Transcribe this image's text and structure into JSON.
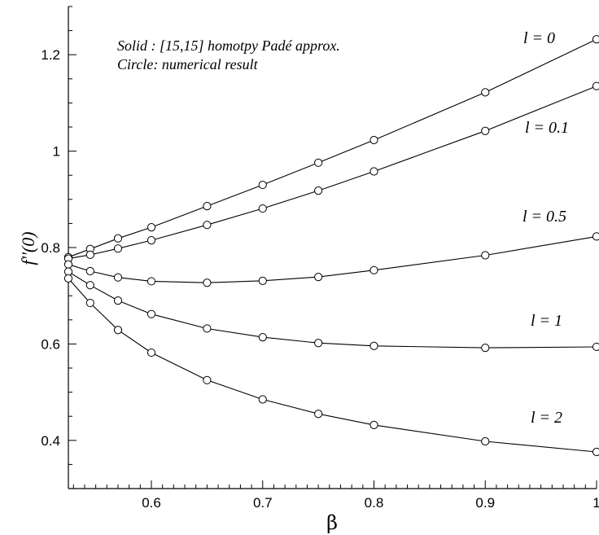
{
  "chart_data": {
    "type": "line",
    "xlabel": "β",
    "ylabel": "f''(0)",
    "xlim": [
      0.5254,
      1.0
    ],
    "ylim": [
      0.3,
      1.3
    ],
    "xticks": [
      0.6,
      0.7,
      0.8,
      0.9,
      1.0
    ],
    "xtick_labels": [
      "0.6",
      "0.7",
      "0.8",
      "0.9",
      "1"
    ],
    "yticks": [
      0.4,
      0.6,
      0.8,
      1.0,
      1.2
    ],
    "ytick_labels": [
      "0.4",
      "0.6",
      "0.8",
      "1",
      "1.2"
    ],
    "annotations": [
      "Solid : [15,15] homotpy Padé approx.",
      "Circle: numerical result"
    ],
    "series": [
      {
        "name": "l = 0",
        "x": [
          0.5254,
          0.545,
          0.57,
          0.6,
          0.65,
          0.7,
          0.75,
          0.8,
          0.9,
          1.0
        ],
        "y": [
          0.78,
          0.797,
          0.819,
          0.842,
          0.886,
          0.93,
          0.976,
          1.023,
          1.122,
          1.232
        ]
      },
      {
        "name": "l = 0.1",
        "x": [
          0.5254,
          0.545,
          0.57,
          0.6,
          0.65,
          0.7,
          0.75,
          0.8,
          0.9,
          1.0
        ],
        "y": [
          0.777,
          0.785,
          0.798,
          0.815,
          0.847,
          0.881,
          0.918,
          0.958,
          1.042,
          1.135
        ]
      },
      {
        "name": "l = 0.5",
        "x": [
          0.5254,
          0.545,
          0.57,
          0.6,
          0.65,
          0.7,
          0.75,
          0.8,
          0.9,
          1.0
        ],
        "y": [
          0.765,
          0.751,
          0.738,
          0.73,
          0.727,
          0.731,
          0.739,
          0.753,
          0.784,
          0.823
        ]
      },
      {
        "name": "l = 1",
        "x": [
          0.5254,
          0.545,
          0.57,
          0.6,
          0.65,
          0.7,
          0.75,
          0.8,
          0.9,
          1.0
        ],
        "y": [
          0.75,
          0.722,
          0.69,
          0.662,
          0.632,
          0.614,
          0.602,
          0.596,
          0.592,
          0.594
        ]
      },
      {
        "name": "l = 2",
        "x": [
          0.5254,
          0.545,
          0.57,
          0.6,
          0.65,
          0.7,
          0.75,
          0.8,
          0.9,
          1.0
        ],
        "y": [
          0.736,
          0.685,
          0.629,
          0.582,
          0.525,
          0.485,
          0.455,
          0.432,
          0.398,
          0.376
        ]
      }
    ],
    "grid": false,
    "legend": "none"
  }
}
